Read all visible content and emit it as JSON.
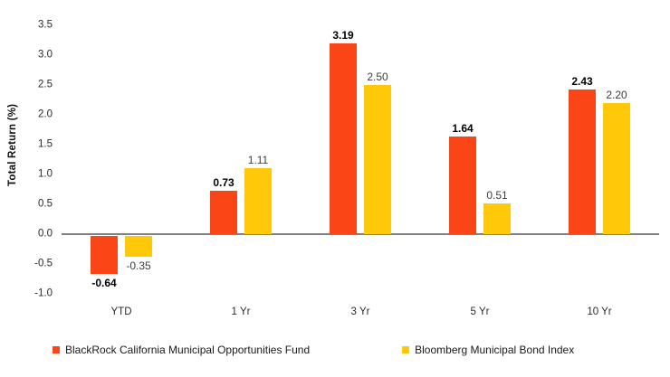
{
  "chart_data": {
    "type": "bar",
    "title": "",
    "xlabel": "",
    "ylabel": "Total Return (%)",
    "categories": [
      "YTD",
      "1 Yr",
      "3 Yr",
      "5 Yr",
      "10 Yr"
    ],
    "series": [
      {
        "name": "BlackRock California Municipal Opportunities Fund",
        "color": "#FA4616",
        "values": [
          -0.64,
          0.73,
          3.19,
          1.64,
          2.43
        ],
        "value_label_style": "bold"
      },
      {
        "name": "Bloomberg Municipal Bond Index",
        "color": "#FFC90A",
        "values": [
          -0.35,
          1.11,
          2.5,
          0.51,
          2.2
        ],
        "value_label_style": "regular"
      }
    ],
    "ylim": [
      -1.0,
      3.5
    ],
    "ytick_step": 0.5,
    "value_label_decimals": 2,
    "grid": false,
    "legend_position": "bottom",
    "axis_line_color": "#808080",
    "tick_label_color": "#2b2b2b",
    "secondary_value_label_color": "#3d3d3d",
    "background_color": "#ffffff"
  }
}
